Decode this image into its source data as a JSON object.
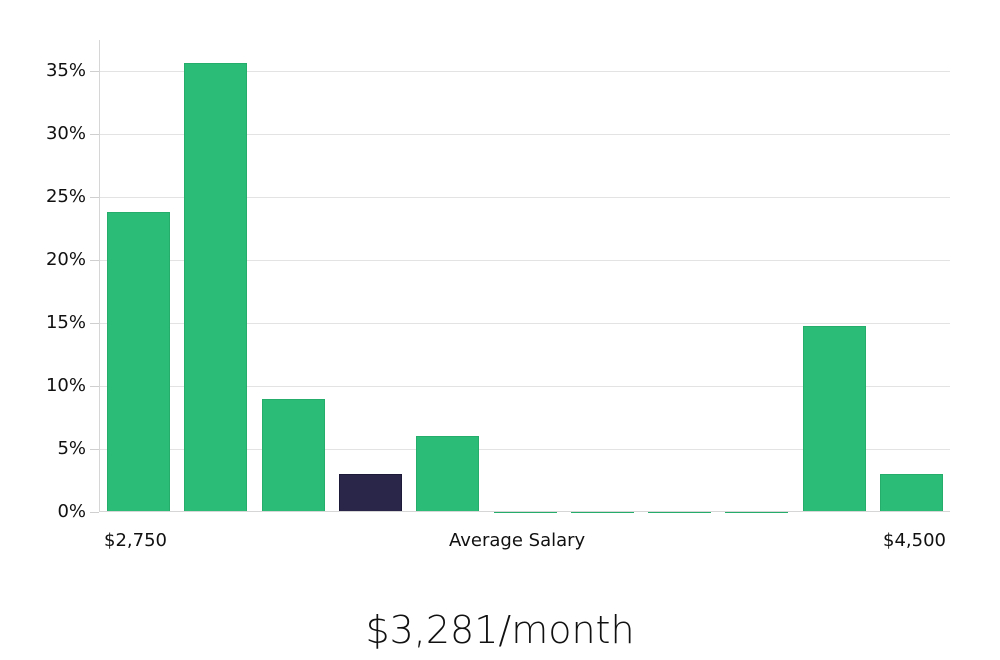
{
  "chart_data": {
    "type": "bar",
    "title": "",
    "xlabel": "Average Salary",
    "ylabel": "",
    "x_range_labels": {
      "min": "$2,750",
      "max": "$4,500"
    },
    "yticks": [
      "0%",
      "5%",
      "10%",
      "15%",
      "20%",
      "25%",
      "30%",
      "35%"
    ],
    "ylim": [
      0,
      37.5
    ],
    "grid": true,
    "categories": [
      "bin1",
      "bin2",
      "bin3",
      "bin4",
      "bin5",
      "bin6",
      "bin7",
      "bin8",
      "bin9",
      "bin10",
      "bin11"
    ],
    "values": [
      23.8,
      35.6,
      9.0,
      3.0,
      6.0,
      0.1,
      0.1,
      0.1,
      0.1,
      14.8,
      3.0
    ],
    "highlighted_index": 3,
    "colors": {
      "bar": "#2bbd77",
      "highlight": "#29264a"
    }
  },
  "labels": {
    "x_min": "$2,750",
    "x_center": "Average Salary",
    "x_max": "$4,500",
    "y": [
      "0%",
      "5%",
      "10%",
      "15%",
      "20%",
      "25%",
      "30%",
      "35%"
    ]
  },
  "summary": {
    "average_salary": "$3,281/month"
  }
}
